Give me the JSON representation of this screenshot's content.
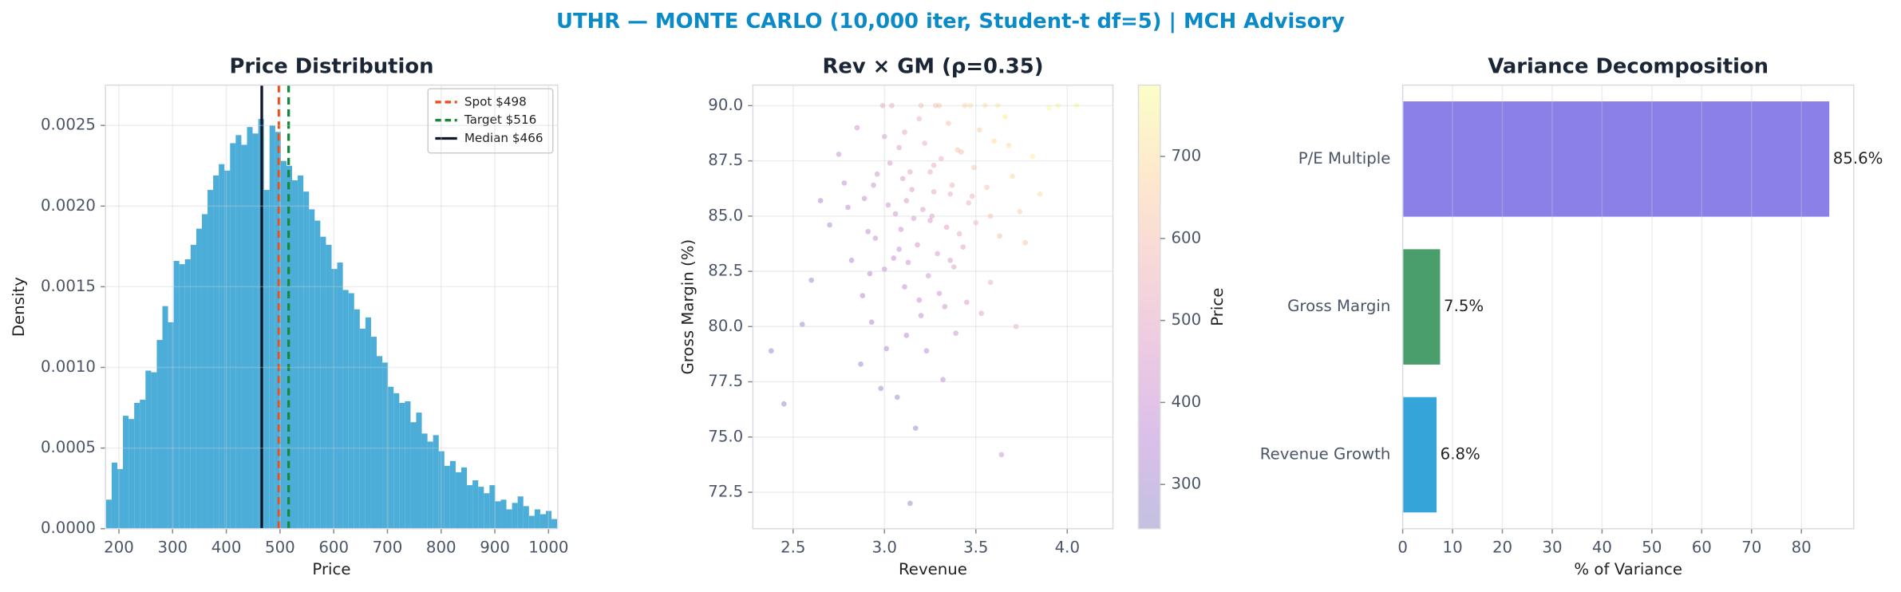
{
  "title": "UTHR — MONTE CARLO (10,000 iter, Student-t df=5) | MCH Advisory",
  "chart_data": [
    {
      "type": "histogram",
      "title": "Price Distribution",
      "xlabel": "Price",
      "ylabel": "Density",
      "bins": [
        176,
        186.5,
        197,
        207.5,
        218,
        228.5,
        239,
        249.5,
        260,
        270.5,
        281,
        291.5,
        302,
        312.5,
        323,
        333.5,
        344,
        354.5,
        365,
        375.5,
        386,
        396.5,
        407,
        417.5,
        428,
        438.5,
        449,
        459.5,
        470,
        480.5,
        491,
        501.5,
        512,
        522.5,
        533,
        543.5,
        554,
        564.5,
        575,
        585.5,
        596,
        606.5,
        617,
        627.5,
        638,
        648.5,
        659,
        669.5,
        680,
        690.5,
        701,
        711.5,
        722,
        732.5,
        743,
        753.5,
        764,
        774.5,
        785,
        795.5,
        806,
        816.5,
        827,
        837.5,
        848,
        858.5,
        869,
        879.5,
        890,
        900.5,
        911,
        921.5,
        932,
        942.5,
        953,
        963.5,
        974,
        984.5,
        995,
        1005.5,
        1016
      ],
      "values": [
        0.00018,
        0.00041,
        0.00037,
        0.0007,
        0.00068,
        0.00078,
        0.0008,
        0.00098,
        0.00097,
        0.00117,
        0.00138,
        0.00128,
        0.00166,
        0.00164,
        0.00167,
        0.00176,
        0.00186,
        0.00195,
        0.0021,
        0.00219,
        0.00226,
        0.00222,
        0.00239,
        0.00244,
        0.00238,
        0.00249,
        0.00245,
        0.00254,
        0.0021,
        0.0025,
        0.00246,
        0.00228,
        0.00225,
        0.00216,
        0.00219,
        0.00209,
        0.00198,
        0.00191,
        0.00181,
        0.00176,
        0.00161,
        0.00165,
        0.00148,
        0.00146,
        0.00136,
        0.00124,
        0.00131,
        0.00119,
        0.00107,
        0.00103,
        0.00088,
        0.00084,
        0.00078,
        0.00079,
        0.00066,
        0.00072,
        0.00059,
        0.00054,
        0.00058,
        0.00048,
        0.00039,
        0.00042,
        0.00035,
        0.00038,
        0.00027,
        0.0003,
        0.00026,
        0.00022,
        0.00027,
        0.00017,
        0.00018,
        0.00012,
        0.00016,
        0.0002,
        0.00014,
        8e-05,
        0.00012,
        9e-05,
        0.00011,
        6e-05
      ],
      "color": "#4badd8",
      "xlim": [
        175,
        1017
      ],
      "ylim": [
        0,
        0.00275
      ],
      "xticks": [
        200,
        300,
        400,
        500,
        600,
        700,
        800,
        900,
        1000
      ],
      "yticks": [
        {
          "value": 0,
          "label": "0.0000"
        },
        0.0005,
        {
          "value": 0.001,
          "label": "0.0010"
        },
        0.0015,
        {
          "value": 0.002,
          "label": "0.0020"
        },
        0.0025
      ],
      "grid": true,
      "legend": "upper right",
      "vlines": [
        {
          "name": "Spot $498",
          "value": 498,
          "color": "#e8501a",
          "dash": true
        },
        {
          "name": "Target $516",
          "value": 516,
          "color": "#14893c",
          "dash": true
        },
        {
          "name": "Median $466",
          "value": 466,
          "color": "#111827",
          "dash": false
        }
      ]
    },
    {
      "type": "scatter",
      "title": "Rev × GM (ρ=0.35)",
      "xlabel": "Revenue",
      "ylabel": "Gross Margin (%)",
      "x": [
        3.21,
        3.05,
        3.42,
        2.88,
        3.3,
        3.15,
        3.6,
        2.95,
        3.38,
        3.12,
        3.55,
        3.25,
        2.78,
        3.48,
        3.08,
        3.33,
        2.98,
        3.7,
        3.18,
        3.44,
        2.85,
        3.27,
        3.02,
        3.63,
        3.11,
        3.36,
        2.92,
        3.52,
        3.2,
        3.07,
        3.81,
        3.29,
        2.7,
        3.41,
        3.14,
        3.58,
        3.0,
        3.23,
        3.47,
        2.89,
        3.35,
        3.09,
        3.66,
        3.19,
        2.96,
        3.39,
        3.26,
        3.04,
        3.74,
        2.82,
        3.31,
        3.13,
        3.5,
        2.6,
        3.22,
        3.45,
        3.06,
        3.9,
        3.17,
        3.37,
        2.93,
        3.28,
        3.1,
        3.56,
        2.75,
        3.24,
        3.43,
        3.01,
        3.62,
        3.16,
        2.45,
        3.34,
        3.03,
        3.77,
        3.2,
        2.99,
        3.49,
        3.12,
        2.87,
        3.4,
        3.95,
        3.27,
        2.91,
        3.53,
        3.08,
        3.32,
        3.68,
        2.8,
        3.19,
        3.46,
        3.0,
        3.58,
        3.25,
        2.55,
        3.36,
        3.11,
        3.85,
        2.94,
        3.3,
        3.64,
        2.38,
        3.14,
        4.05,
        3.72,
        2.65
      ],
      "y": [
        85.3,
        83.1,
        87.9,
        81.4,
        90.0,
        86.2,
        88.4,
        84.0,
        82.7,
        79.6,
        90.0,
        84.8,
        86.5,
        85.9,
        88.1,
        80.9,
        77.2,
        86.8,
        83.7,
        90.0,
        89.0,
        87.3,
        85.5,
        84.1,
        81.8,
        86.0,
        82.4,
        88.9,
        90.0,
        76.8,
        87.7,
        83.3,
        84.6,
        84.2,
        87.0,
        82.0,
        88.6,
        78.9,
        90.0,
        85.8,
        89.2,
        84.4,
        89.5,
        81.2,
        86.9,
        79.7,
        85.0,
        90.0,
        85.2,
        83.0,
        87.6,
        82.9,
        84.7,
        82.1,
        88.3,
        81.1,
        85.1,
        89.9,
        75.4,
        86.4,
        80.2,
        90.0,
        86.7,
        86.3,
        87.8,
        82.3,
        83.6,
        79.0,
        90.0,
        84.9,
        76.5,
        84.5,
        87.4,
        83.8,
        80.5,
        90.0,
        87.2,
        85.7,
        78.3,
        88.0,
        90.0,
        86.1,
        84.3,
        80.6,
        83.5,
        77.6,
        88.2,
        85.4,
        89.4,
        85.6,
        82.6,
        85.0,
        87.0,
        80.1,
        83.0,
        88.8,
        86.0,
        86.4,
        81.5,
        74.2,
        78.9,
        72.0,
        90.0,
        80.0,
        85.7
      ],
      "c": [
        470,
        390,
        610,
        330,
        640,
        480,
        700,
        400,
        490,
        350,
        720,
        460,
        380,
        560,
        470,
        420,
        300,
        690,
        430,
        680,
        430,
        530,
        420,
        600,
        380,
        540,
        340,
        660,
        590,
        300,
        760,
        460,
        340,
        520,
        500,
        560,
        460,
        360,
        700,
        390,
        610,
        410,
        750,
        390,
        420,
        420,
        480,
        520,
        650,
        340,
        560,
        410,
        560,
        290,
        550,
        460,
        420,
        780,
        290,
        560,
        320,
        620,
        470,
        620,
        400,
        430,
        500,
        330,
        740,
        450,
        260,
        490,
        460,
        630,
        380,
        500,
        620,
        460,
        300,
        620,
        780,
        510,
        370,
        490,
        400,
        370,
        710,
        360,
        560,
        560,
        360,
        600,
        530,
        270,
        470,
        510,
        700,
        410,
        430,
        420,
        250,
        270,
        780,
        540,
        330
      ],
      "colormap": [
        "#0d0887",
        "#6a00a8",
        "#b12a90",
        "#e16462",
        "#fca636",
        "#f0f921"
      ],
      "alpha": 0.25,
      "clim": [
        246,
        787
      ],
      "cticks": [
        300,
        400,
        500,
        600,
        700
      ],
      "clabel": "Price",
      "xlim": [
        2.28,
        4.25
      ],
      "ylim": [
        70.85,
        90.93
      ],
      "xticks": [
        2.5,
        {
          "value": 3,
          "label": "3.0"
        },
        3.5,
        {
          "value": 4,
          "label": "4.0"
        }
      ],
      "yticks": [
        72.5,
        {
          "value": 75,
          "label": "75.0"
        },
        77.5,
        {
          "value": 80,
          "label": "80.0"
        },
        82.5,
        {
          "value": 85,
          "label": "85.0"
        },
        87.5,
        {
          "value": 90,
          "label": "90.0"
        }
      ],
      "grid": true
    },
    {
      "type": "hbar",
      "title": "Variance Decomposition",
      "xlabel": "% of Variance",
      "categories": [
        "P/E Multiple",
        "Gross Margin",
        "Revenue Growth"
      ],
      "values": [
        85.6,
        7.5,
        6.8
      ],
      "value_labels": [
        "85.6%",
        "7.5%",
        "6.8%"
      ],
      "colors": [
        "#8b7fe8",
        "#4a9e6b",
        "#35a4d8"
      ],
      "xlim": [
        0,
        90.5
      ],
      "xticks": [
        0,
        10,
        20,
        30,
        40,
        50,
        60,
        70,
        80
      ],
      "grid": true
    }
  ]
}
